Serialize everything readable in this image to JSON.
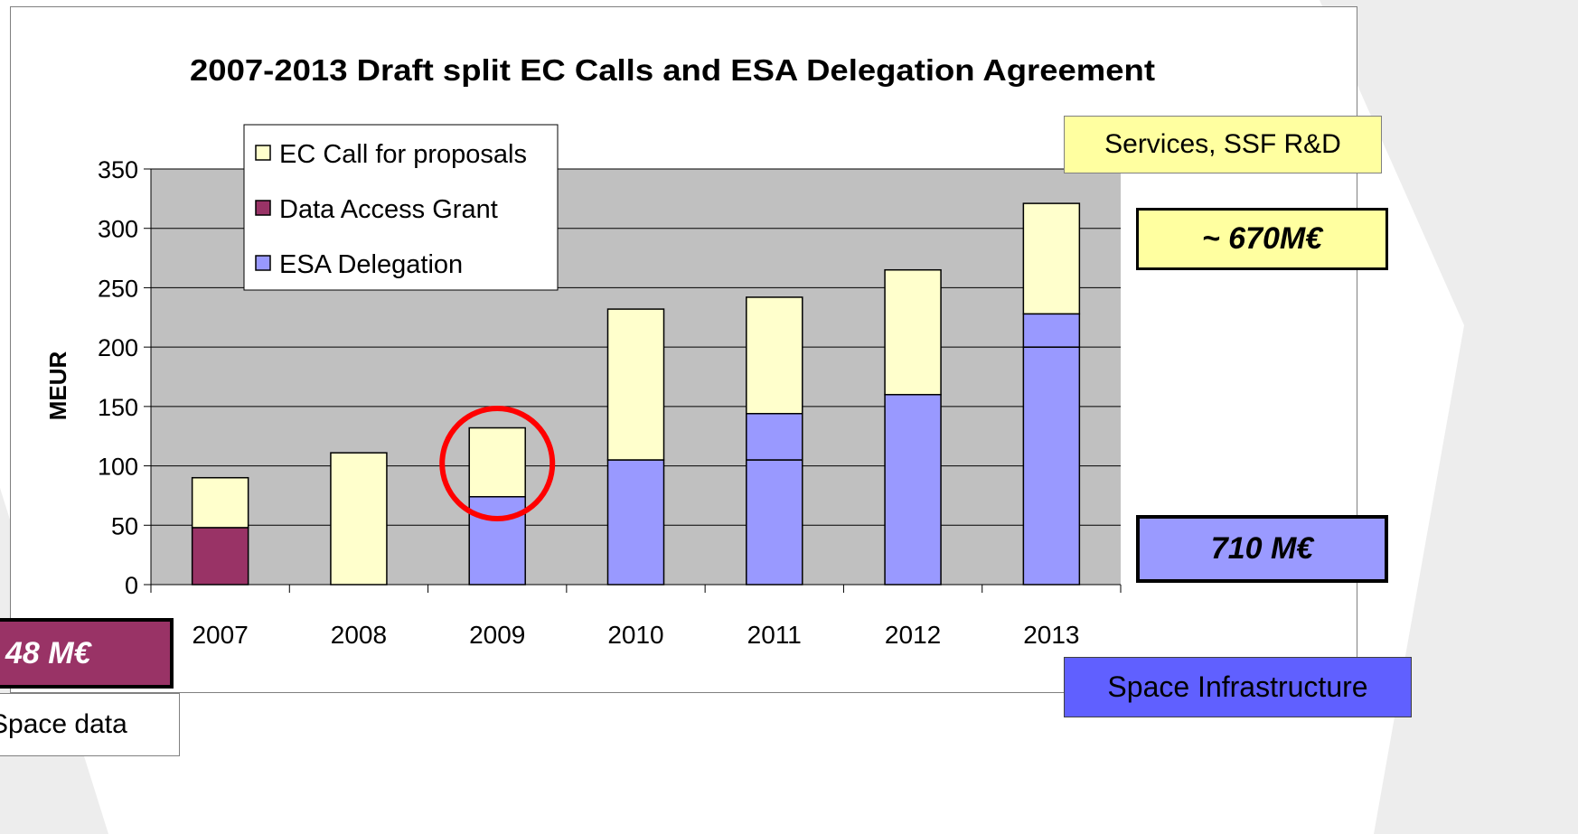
{
  "colors": {
    "ec_call": "#ffffcc",
    "data_access": "#993366",
    "esa_delegation": "#9999ff",
    "plot_bg": "#c0c0c0",
    "highlight_circle": "#ff0000",
    "bg_shape": "#dedede"
  },
  "chart_data": {
    "type": "bar",
    "stacked": true,
    "title": "2007-2013 Draft split EC Calls and ESA Delegation Agreement",
    "xlabel": "",
    "ylabel": "MEUR",
    "categories": [
      "2007",
      "2008",
      "2009",
      "2010",
      "2011",
      "2012",
      "2013"
    ],
    "ylim": [
      0,
      350
    ],
    "yticks": [
      "0",
      "50",
      "100",
      "150",
      "200",
      "250",
      "300",
      "350"
    ],
    "grid": true,
    "legend_placement": "top-left",
    "legend_order": [
      "EC Call for proposals",
      "Data Access Grant",
      "ESA Delegation"
    ],
    "segments": [
      [
        {
          "series": "Data Access Grant",
          "value": 48
        },
        {
          "series": "EC Call for proposals",
          "value": 42
        }
      ],
      [
        {
          "series": "EC Call for proposals",
          "value": 111
        }
      ],
      [
        {
          "series": "ESA Delegation",
          "value": 74
        },
        {
          "series": "EC Call for proposals",
          "value": 58
        }
      ],
      [
        {
          "series": "ESA Delegation",
          "value": 105
        },
        {
          "series": "EC Call for proposals",
          "value": 127
        }
      ],
      [
        {
          "series": "ESA Delegation",
          "value": 105
        },
        {
          "series": "ESA Delegation",
          "value": 39
        },
        {
          "series": "EC Call for proposals",
          "value": 98
        }
      ],
      [
        {
          "series": "ESA Delegation",
          "value": 160
        },
        {
          "series": "EC Call for proposals",
          "value": 105
        }
      ],
      [
        {
          "series": "ESA Delegation",
          "value": 200
        },
        {
          "series": "ESA Delegation",
          "value": 28
        },
        {
          "series": "EC Call for proposals",
          "value": 93
        }
      ]
    ],
    "highlight": {
      "category": "2009",
      "shape": "circle",
      "color": "#ff0000"
    }
  },
  "annotations": {
    "services": "Services, SSF R&D",
    "total_670": "~ 670M€",
    "total_710": "710 M€",
    "space_infrastructure": "Space Infrastructure",
    "total_48": "48 M€",
    "space_data": "Space data"
  }
}
